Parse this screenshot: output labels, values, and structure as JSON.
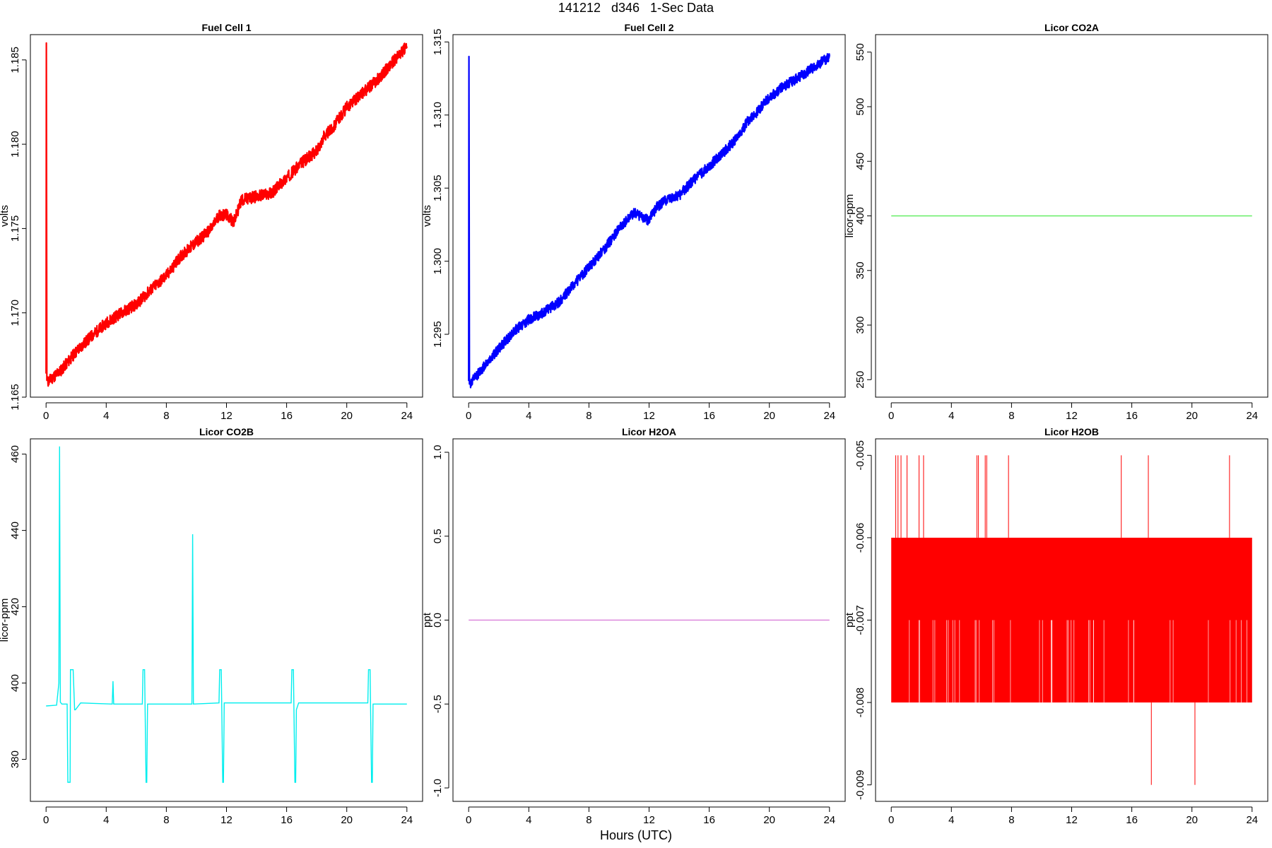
{
  "page": {
    "title": "141212   d346   1-Sec Data",
    "xlabel": "Hours (UTC)"
  },
  "chart_data": [
    {
      "type": "line",
      "title": "Fuel Cell 1",
      "ylabel": "volts",
      "xlim": [
        0,
        24
      ],
      "ylim": [
        1.165,
        1.1865
      ],
      "x_ticks": [
        0,
        4,
        8,
        12,
        16,
        20,
        24
      ],
      "y_ticks": [
        1.165,
        1.17,
        1.175,
        1.18,
        1.185
      ],
      "y_tick_labels": [
        "1.165",
        "1.170",
        "1.175",
        "1.180",
        "1.185"
      ],
      "color": "#ff0000",
      "noise_band": 0.00035,
      "series": [
        {
          "x": [
            0,
            0.02,
            0.05,
            0.1,
            1,
            2,
            3,
            4,
            5,
            6,
            7,
            8,
            9,
            10,
            11,
            11.5,
            12,
            12.5,
            13,
            14,
            15,
            16,
            17,
            18,
            18.5,
            19,
            20,
            21,
            22,
            23,
            24
          ],
          "y": [
            1.1664,
            1.186,
            1.166,
            1.1659,
            1.1666,
            1.1677,
            1.1686,
            1.1694,
            1.17,
            1.1705,
            1.1714,
            1.1722,
            1.1734,
            1.1742,
            1.175,
            1.1758,
            1.1758,
            1.1754,
            1.1767,
            1.1769,
            1.1771,
            1.178,
            1.1789,
            1.1796,
            1.1805,
            1.1809,
            1.1822,
            1.183,
            1.1838,
            1.1848,
            1.1858
          ]
        }
      ]
    },
    {
      "type": "line",
      "title": "Fuel Cell 2",
      "ylabel": "volts",
      "xlim": [
        0,
        24
      ],
      "ylim": [
        1.2907,
        1.3155
      ],
      "x_ticks": [
        0,
        4,
        8,
        12,
        16,
        20,
        24
      ],
      "y_ticks": [
        1.295,
        1.3,
        1.305,
        1.31,
        1.315
      ],
      "y_tick_labels": [
        "1.295",
        "1.300",
        "1.305",
        "1.310",
        "1.315"
      ],
      "color": "#0000ff",
      "noise_band": 0.00035,
      "series": [
        {
          "x": [
            0,
            0.02,
            0.05,
            0.1,
            1,
            2,
            3,
            4,
            5,
            6,
            7,
            8,
            9,
            10,
            11,
            11.5,
            12,
            12.5,
            13,
            14,
            15,
            16,
            17,
            18,
            18.5,
            19,
            20,
            21,
            22,
            23,
            24
          ],
          "y": [
            1.2918,
            1.314,
            1.2916,
            1.2916,
            1.2928,
            1.294,
            1.2952,
            1.296,
            1.2965,
            1.2972,
            1.2984,
            1.2996,
            1.3008,
            1.3022,
            1.3033,
            1.303,
            1.3028,
            1.3037,
            1.3041,
            1.3045,
            1.3056,
            1.3065,
            1.3075,
            1.3086,
            1.3095,
            1.31,
            1.3112,
            1.312,
            1.3126,
            1.3133,
            1.314
          ]
        }
      ]
    },
    {
      "type": "line",
      "title": "Licor CO2A",
      "ylabel": "licor-ppm",
      "xlim": [
        0,
        24
      ],
      "ylim": [
        234,
        566
      ],
      "x_ticks": [
        0,
        4,
        8,
        12,
        16,
        20,
        24
      ],
      "y_ticks": [
        250,
        300,
        350,
        400,
        450,
        500,
        550
      ],
      "y_tick_labels": [
        "250",
        "300",
        "350",
        "400",
        "450",
        "500",
        "550"
      ],
      "color": "#66ee66",
      "series": [
        {
          "x": [
            0,
            24
          ],
          "y": [
            400,
            400
          ]
        }
      ]
    },
    {
      "type": "line",
      "title": "Licor CO2B",
      "ylabel": "licor-ppm",
      "xlim": [
        0,
        24
      ],
      "ylim": [
        369,
        464
      ],
      "x_ticks": [
        0,
        4,
        8,
        12,
        16,
        20,
        24
      ],
      "y_ticks": [
        380,
        400,
        420,
        440,
        460
      ],
      "y_tick_labels": [
        "380",
        "400",
        "420",
        "440",
        "460"
      ],
      "color": "#00eeee",
      "series": [
        {
          "x": [
            0,
            0.7,
            0.85,
            0.9,
            0.95,
            1.05,
            1.4,
            1.45,
            1.5,
            1.6,
            1.62,
            1.7,
            1.8,
            1.9,
            1.95,
            2.3,
            4.4,
            4.45,
            4.5,
            6.4,
            6.45,
            6.55,
            6.65,
            6.7,
            6.75,
            9.7,
            9.75,
            9.8,
            11.5,
            11.55,
            11.65,
            11.75,
            11.8,
            11.85,
            16.3,
            16.35,
            16.45,
            16.55,
            16.6,
            16.65,
            16.8,
            21.4,
            21.45,
            21.55,
            21.65,
            21.7,
            21.75,
            24
          ],
          "y": [
            394,
            394.2,
            400,
            462,
            395,
            394.5,
            394.5,
            374,
            374,
            374,
            403.5,
            403.5,
            403.5,
            393,
            393,
            394.8,
            394.5,
            400.5,
            394.5,
            394.5,
            403.5,
            403.5,
            374,
            374,
            394.5,
            394.5,
            439,
            394.5,
            394.8,
            403.5,
            403.5,
            374,
            374,
            394.8,
            394.8,
            403.5,
            403.5,
            374,
            374,
            393,
            394.8,
            394.8,
            403.5,
            403.5,
            374,
            374,
            394.5,
            394.5
          ]
        }
      ]
    },
    {
      "type": "line",
      "title": "Licor H2OA",
      "ylabel": "ppt",
      "xlim": [
        0,
        24
      ],
      "ylim": [
        -1.08,
        1.08
      ],
      "x_ticks": [
        0,
        4,
        8,
        12,
        16,
        20,
        24
      ],
      "y_ticks": [
        -1.0,
        -0.5,
        0.0,
        0.5,
        1.0
      ],
      "y_tick_labels": [
        "-1.0",
        "-0.5",
        "0.0",
        "0.5",
        "1.0"
      ],
      "color": "#dd88dd",
      "series": [
        {
          "x": [
            0,
            24
          ],
          "y": [
            0,
            0
          ]
        }
      ]
    },
    {
      "type": "line",
      "title": "Licor H2OB",
      "ylabel": "ppt",
      "xlim": [
        0,
        24
      ],
      "ylim": [
        -0.0092,
        -0.0048
      ],
      "x_ticks": [
        0,
        4,
        8,
        12,
        16,
        20,
        24
      ],
      "y_ticks": [
        -0.009,
        -0.008,
        -0.007,
        -0.006,
        -0.005
      ],
      "y_tick_labels": [
        "-0.009",
        "-0.008",
        "-0.007",
        "-0.006",
        "-0.005"
      ],
      "color": "#ff0000",
      "band": {
        "x_range": [
          0,
          24
        ],
        "y_range": [
          -0.008,
          -0.006
        ]
      },
      "spikes_up": [
        0.3,
        0.45,
        0.65,
        1.05,
        1.85,
        2.15,
        5.7,
        5.8,
        6.25,
        6.35,
        7.8,
        15.3,
        17.1,
        22.5
      ],
      "spike_up_value": -0.005,
      "spikes_down": [
        17.3,
        20.2
      ],
      "spike_down_value": -0.009
    }
  ]
}
